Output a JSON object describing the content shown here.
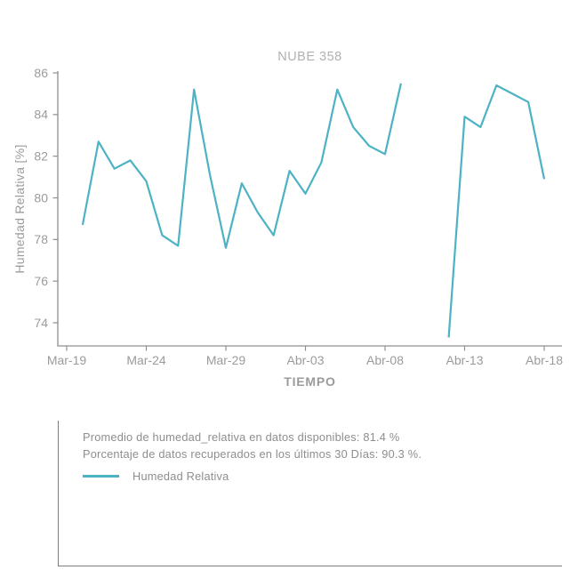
{
  "chart_data": {
    "type": "line",
    "title": "NUBE 358",
    "xlabel": "TIEMPO",
    "ylabel": "Humedad Relativa [%]",
    "ylim": [
      72.9,
      86
    ],
    "y_ticks": [
      86,
      84,
      82,
      80,
      78,
      76,
      74
    ],
    "x_ticks": [
      "Mar-19",
      "Mar-24",
      "Mar-29",
      "Abr-03",
      "Abr-08",
      "Abr-13",
      "Abr-18"
    ],
    "x_tick_interval_days": 5,
    "grid": false,
    "legend_position": "bottom-panel",
    "line_color": "#4cb2c4",
    "axis_color": "#8f8f8f",
    "tick_label_color": "#9b9b9b",
    "title_color": "#b1b1b1",
    "series": [
      {
        "name": "Humedad Relativa",
        "color": "#4cb2c4",
        "x": [
          "Mar-20",
          "Mar-21",
          "Mar-22",
          "Mar-23",
          "Mar-24",
          "Mar-25",
          "Mar-26",
          "Mar-27",
          "Mar-28",
          "Mar-29",
          "Mar-30",
          "Mar-31",
          "Abr-01",
          "Abr-02",
          "Abr-03",
          "Abr-04",
          "Abr-05",
          "Abr-06",
          "Abr-07",
          "Abr-08",
          "Abr-09",
          "Abr-10",
          "Abr-11",
          "Abr-12",
          "Abr-13",
          "Abr-14",
          "Abr-15",
          "Abr-16",
          "Abr-17",
          "Abr-18"
        ],
        "values": [
          78.7,
          82.7,
          81.4,
          81.8,
          80.8,
          78.2,
          77.7,
          85.2,
          81.1,
          77.6,
          80.7,
          79.3,
          78.2,
          81.3,
          80.2,
          81.7,
          85.2,
          83.4,
          82.5,
          82.1,
          85.5,
          null,
          null,
          73.3,
          83.9,
          83.4,
          85.4,
          85.0,
          84.6,
          80.9
        ]
      }
    ]
  },
  "panel": {
    "line1": "Promedio de humedad_relativa en datos disponibles: 81.4 %",
    "line2": "Porcentaje de datos recuperados en los últimos 30 Días: 90.3 %.",
    "legend_label": "Humedad Relativa"
  }
}
